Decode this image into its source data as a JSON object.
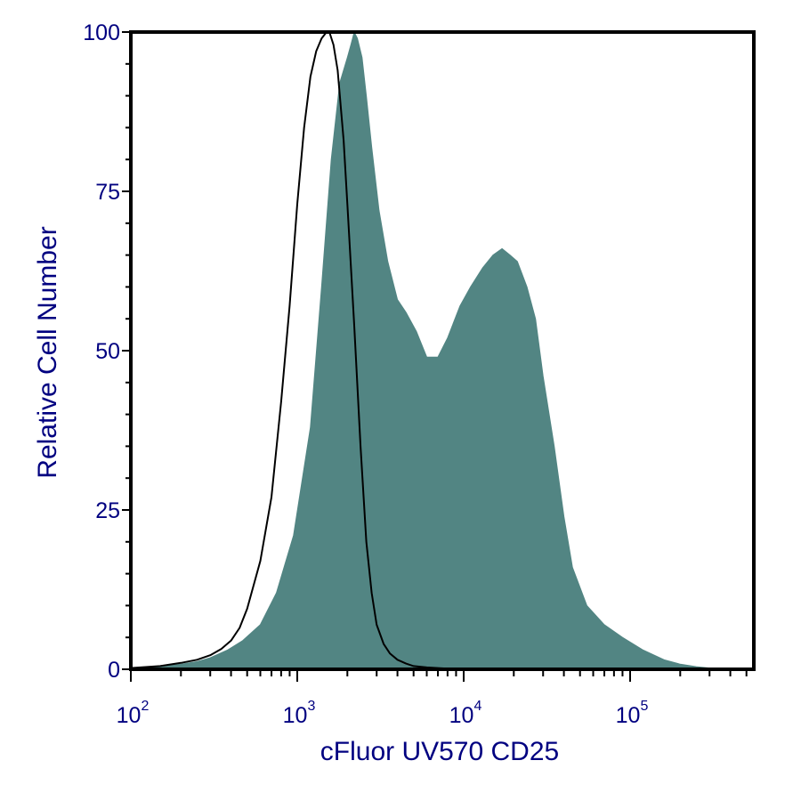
{
  "chart_data": {
    "type": "area",
    "title": "",
    "xlabel": "cFluor UV570 CD25",
    "ylabel": "Relative Cell Number",
    "x_scale": "log",
    "xlim": [
      100,
      500000
    ],
    "ylim": [
      0,
      100
    ],
    "grid": false,
    "legend": "none",
    "y_ticks": [
      0,
      25,
      50,
      75,
      100
    ],
    "y_tick_labels": [
      "0",
      "25",
      "50",
      "75",
      "100"
    ],
    "x_ticks": [
      100,
      1000,
      10000,
      100000
    ],
    "x_tick_labels": [
      {
        "base": "10",
        "exp": "2"
      },
      {
        "base": "10",
        "exp": "3"
      },
      {
        "base": "10",
        "exp": "4"
      },
      {
        "base": "10",
        "exp": "5"
      }
    ],
    "series": [
      {
        "style": "filled",
        "color": "#528583",
        "x": [
          100,
          150,
          200,
          250,
          300,
          380,
          470,
          600,
          750,
          950,
          1200,
          1400,
          1600,
          1800,
          2000,
          2100,
          2200,
          2300,
          2450,
          2600,
          2800,
          3100,
          3500,
          4000,
          4500,
          5200,
          6000,
          7000,
          8000,
          9500,
          11000,
          13000,
          15000,
          17000,
          19000,
          21000,
          24000,
          27000,
          30000,
          35000,
          40000,
          45000,
          55000,
          70000,
          90000,
          120000,
          160000,
          200000,
          250000,
          300000,
          400000,
          500000
        ],
        "y": [
          0.2,
          0.5,
          0.8,
          1.2,
          1.8,
          3,
          4.5,
          7,
          12,
          21,
          38,
          60,
          80,
          92,
          96,
          98,
          100,
          99,
          96,
          90,
          82,
          72,
          64,
          58,
          56,
          53,
          49,
          49,
          52,
          57,
          60,
          63,
          65,
          66,
          65,
          64,
          60,
          55,
          46,
          35,
          24,
          16,
          10,
          7,
          5,
          3,
          1.5,
          0.8,
          0.4,
          0.2,
          0.1,
          0
        ]
      },
      {
        "style": "outline",
        "color": "#000000",
        "x": [
          100,
          150,
          200,
          250,
          300,
          350,
          400,
          450,
          500,
          600,
          700,
          800,
          900,
          1000,
          1100,
          1200,
          1300,
          1400,
          1500,
          1560,
          1650,
          1750,
          1900,
          2000,
          2200,
          2400,
          2600,
          2800,
          3000,
          3300,
          3600,
          4000,
          4500,
          5000,
          6000,
          7000,
          8000,
          9000,
          10000
        ],
        "y": [
          0.2,
          0.5,
          1,
          1.5,
          2.2,
          3.2,
          4.5,
          6.5,
          9.5,
          17,
          27,
          42,
          57,
          73,
          85,
          93,
          97,
          99,
          100,
          100,
          98,
          94,
          83,
          73,
          54,
          35,
          20,
          12,
          7,
          4,
          2.5,
          1.5,
          0.9,
          0.5,
          0.3,
          0.2,
          0.1,
          0,
          0
        ]
      }
    ]
  }
}
